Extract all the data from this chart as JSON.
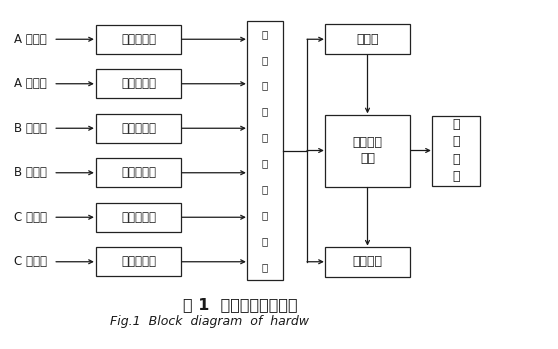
{
  "title_cn": "图 1  仪器硬件结构框图",
  "title_en": "Fig.1  Block  diagram  of  hardw",
  "background_color": "#ffffff",
  "inputs": [
    "A 相电压",
    "A 相电流",
    "B 相电压",
    "B 相电流",
    "C 相电压",
    "C 相电流"
  ],
  "sensors": [
    "电压传感器",
    "电流传感器",
    "电压传感器",
    "电流传感器",
    "电压传感器",
    "电流传感器"
  ],
  "center_block_text": "采样保持和模转换单元",
  "center_block_lines": [
    "采",
    "样",
    "保",
    "持",
    "和",
    "模",
    "转",
    "换",
    "单",
    "元"
  ],
  "stor_text": "存储器",
  "proc_text_lines": [
    "数据处理",
    "单元"
  ],
  "ext_text": "扩展接口",
  "disp_text_lines": [
    "显",
    "示",
    "单",
    "元"
  ],
  "text_color": "#1a1a1a",
  "box_edge_color": "#222222",
  "box_fill_color": "#ffffff",
  "fig_width": 5.58,
  "fig_height": 3.49,
  "dpi": 100
}
